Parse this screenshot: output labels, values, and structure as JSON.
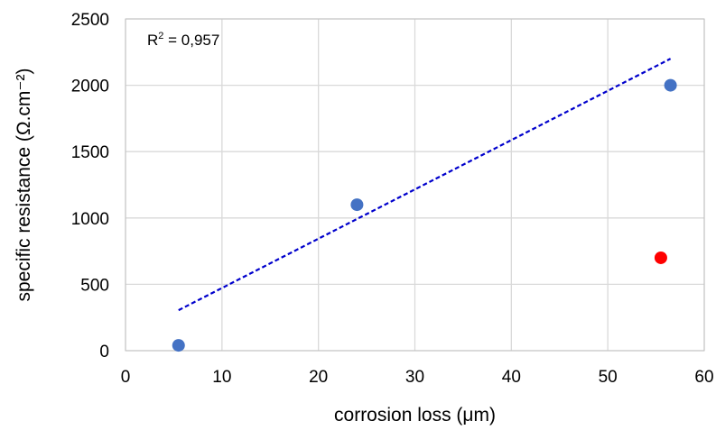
{
  "chart_data": {
    "type": "scatter",
    "xlabel": "corrosion loss (μm)",
    "ylabel": "specific resistance (Ω.cm⁻²)",
    "xlim": [
      0,
      60
    ],
    "ylim": [
      0,
      2500
    ],
    "x_ticks": [
      "0",
      "10",
      "20",
      "30",
      "40",
      "50",
      "60"
    ],
    "y_ticks": [
      "0",
      "500",
      "1000",
      "1500",
      "2000",
      "2500"
    ],
    "grid": true,
    "legend": "none",
    "series": [
      {
        "color": "#4472c4",
        "points": [
          {
            "x": 5.5,
            "y": 40
          },
          {
            "x": 24,
            "y": 1100
          },
          {
            "x": 56.5,
            "y": 2000
          }
        ]
      },
      {
        "color": "#ff0000",
        "points": [
          {
            "x": 55.5,
            "y": 700
          }
        ]
      }
    ],
    "trendline": {
      "style": "dashed",
      "color": "#0000cc",
      "start": {
        "x": 5.5,
        "y": 305
      },
      "end": {
        "x": 56.5,
        "y": 2200
      }
    },
    "annotation": {
      "text": "R",
      "superscript": "2",
      "rest": " = 0,957"
    }
  }
}
